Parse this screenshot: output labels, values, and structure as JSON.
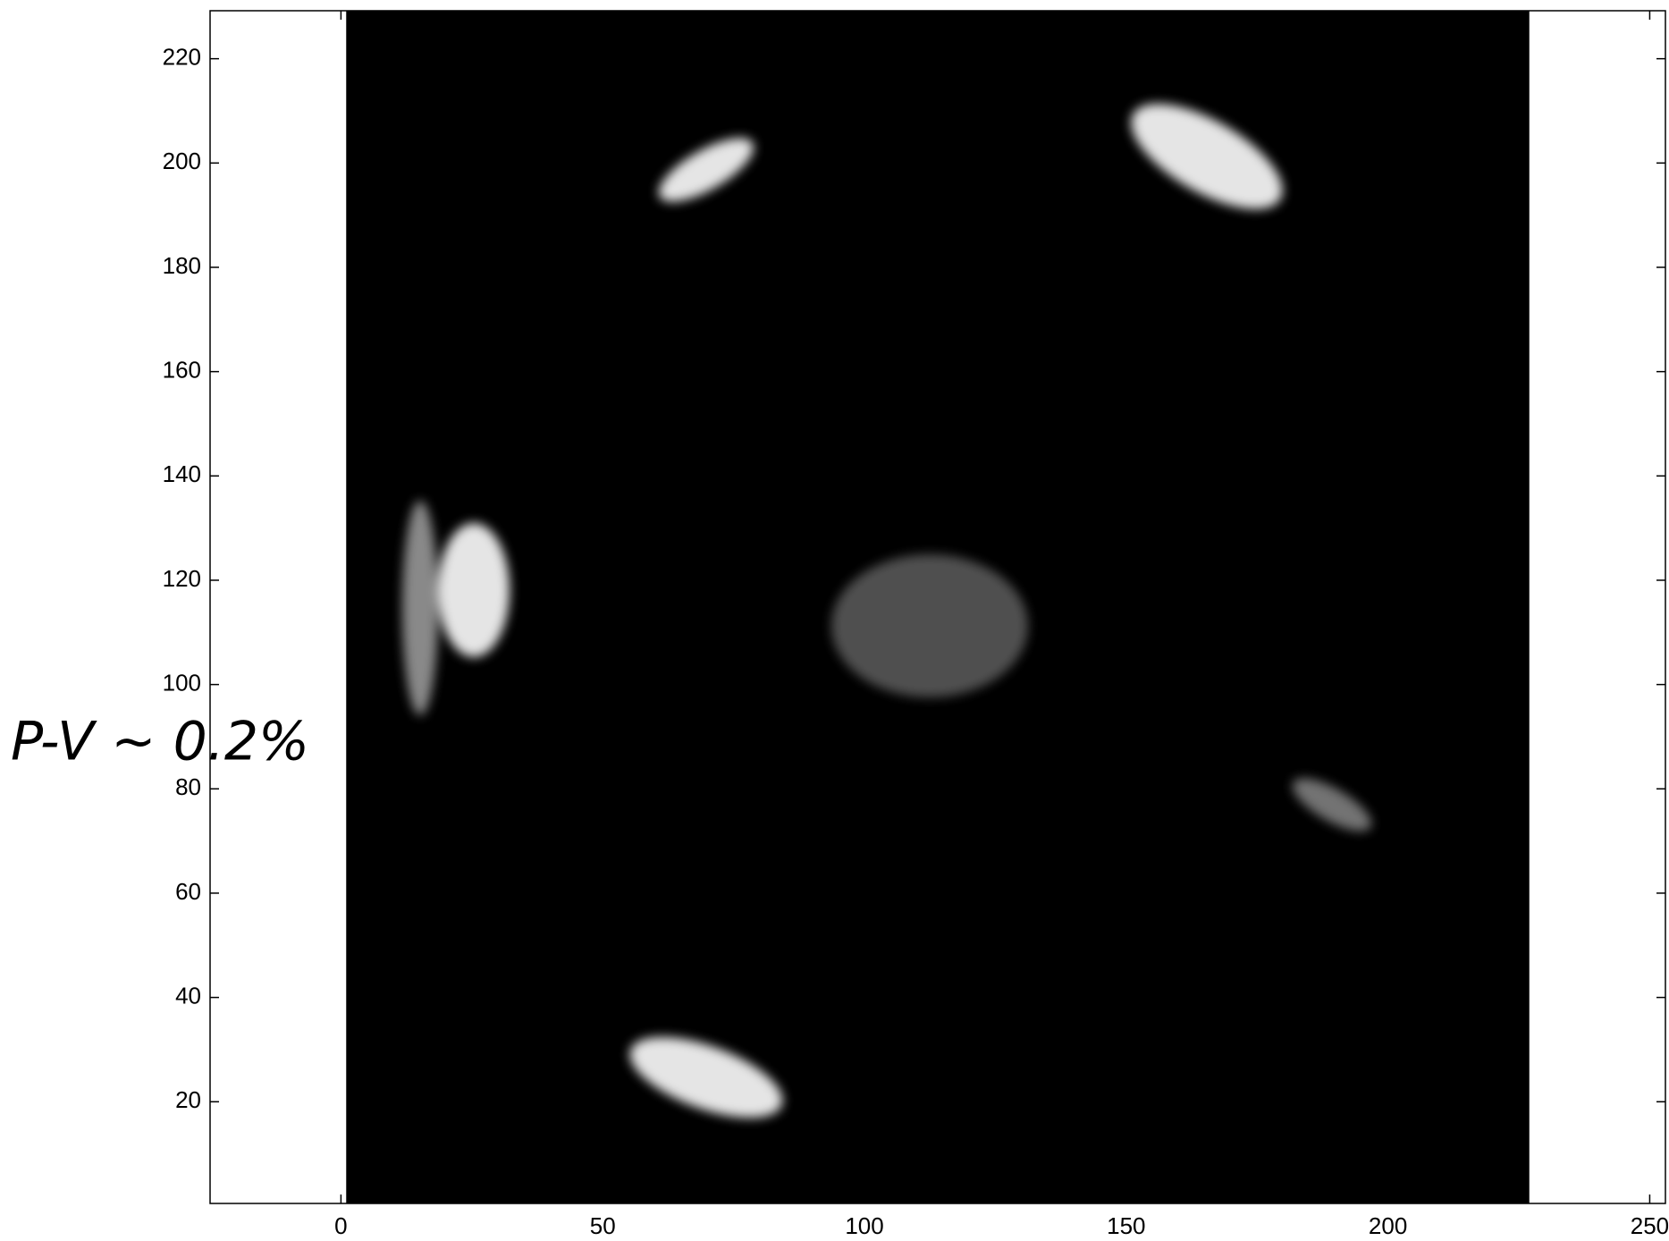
{
  "chart_data": {
    "type": "image",
    "annotation": "P-V ~ 0.2%",
    "extent": [
      1,
      227,
      0.5,
      229.2
    ],
    "color": "#000000",
    "xlim": [
      -25,
      253
    ],
    "ylim": [
      0.5,
      229.2
    ],
    "xticks": [
      0,
      50,
      100,
      150,
      200,
      250
    ],
    "yticks": [
      20,
      40,
      60,
      80,
      100,
      120,
      140,
      160,
      180,
      200,
      220
    ]
  }
}
